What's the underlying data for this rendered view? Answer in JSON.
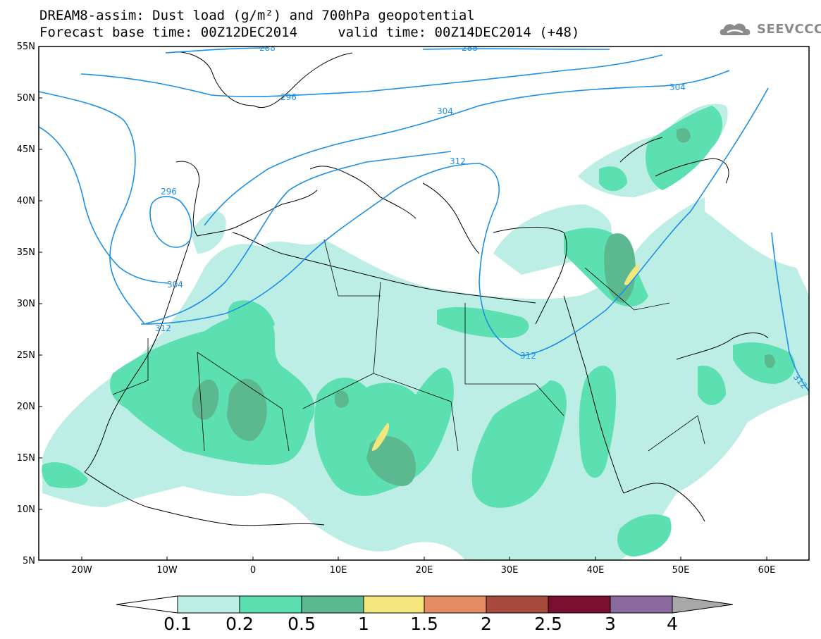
{
  "header": {
    "line1": "DREAM8-assim: Dust load (g/m²) and 700hPa geopotential",
    "line2": "Forecast base time: 00Z12DEC2014     valid time: 00Z14DEC2014 (+48)"
  },
  "logo": {
    "text": "SEEVCCC",
    "icon": "cloud-logo-icon",
    "color": "#8a8a8a"
  },
  "axes": {
    "lat_labels": [
      "55N",
      "50N",
      "45N",
      "40N",
      "35N",
      "30N",
      "25N",
      "20N",
      "15N",
      "10N",
      "5N"
    ],
    "lon_labels": [
      "20W",
      "10W",
      "0",
      "10E",
      "20E",
      "30E",
      "40E",
      "50E",
      "60E"
    ]
  },
  "contours": {
    "color": "#1e8fe6",
    "labels": [
      "288",
      "288",
      "296",
      "304",
      "304",
      "312",
      "296",
      "304",
      "312",
      "312",
      "312"
    ]
  },
  "colorbar": {
    "labels": [
      "0.1",
      "0.2",
      "0.5",
      "1",
      "1.5",
      "2",
      "2.5",
      "3",
      "4"
    ],
    "colors": [
      "#ffffff",
      "#bdeee6",
      "#5ce0b2",
      "#5cb88e",
      "#f2e67c",
      "#e58c64",
      "#a84a3e",
      "#7a1030",
      "#8a6a9e",
      "#a8a8a8"
    ]
  },
  "dust_colors": {
    "light": "#bdeee6",
    "medium": "#5ce0b2",
    "dark": "#5cb88e",
    "yellow": "#f2e67c"
  }
}
